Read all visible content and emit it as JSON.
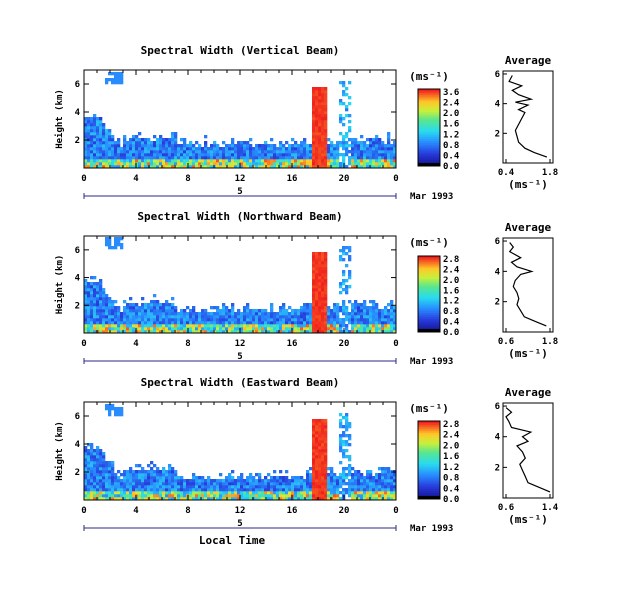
{
  "chart_data": [
    {
      "type": "heatmap",
      "title": "Spectral Width (Vertical Beam)",
      "ylabel": "Height (km)",
      "xlabel": "",
      "x_ticks": [
        "0",
        "4",
        "8",
        "12",
        "16",
        "20",
        "0"
      ],
      "y_ticks": [
        "6",
        "4",
        "2"
      ],
      "day_label": "5",
      "date_label": "Mar 1993",
      "colorbar": {
        "unit": "(ms⁻¹)",
        "labels": [
          "3.6",
          "2.4",
          "2.0",
          "1.6",
          "1.2",
          "0.8",
          "0.4",
          "0.0"
        ]
      },
      "average": {
        "title": "Average",
        "xlabel": "(ms⁻¹)",
        "x_ticks": [
          "0.4",
          "1.8"
        ],
        "y_ticks": [
          "6",
          "4",
          "2"
        ],
        "profile": [
          [
            1.7,
            0.4
          ],
          [
            1.3,
            0.7
          ],
          [
            1.0,
            1.0
          ],
          [
            0.8,
            1.4
          ],
          [
            0.75,
            1.8
          ],
          [
            0.7,
            2.2
          ],
          [
            0.8,
            2.6
          ],
          [
            0.9,
            3.0
          ],
          [
            1.0,
            3.4
          ],
          [
            0.8,
            3.6
          ],
          [
            1.1,
            3.9
          ],
          [
            0.7,
            4.1
          ],
          [
            1.2,
            4.3
          ],
          [
            0.8,
            4.6
          ],
          [
            0.6,
            4.9
          ],
          [
            0.9,
            5.2
          ],
          [
            0.5,
            5.5
          ],
          [
            0.6,
            5.9
          ]
        ]
      }
    },
    {
      "type": "heatmap",
      "title": "Spectral Width (Northward Beam)",
      "ylabel": "Height (km)",
      "xlabel": "",
      "x_ticks": [
        "0",
        "4",
        "8",
        "12",
        "16",
        "20",
        "0"
      ],
      "y_ticks": [
        "6",
        "4",
        "2"
      ],
      "day_label": "5",
      "date_label": "Mar 1993",
      "colorbar": {
        "unit": "(ms⁻¹)",
        "labels": [
          "2.8",
          "2.4",
          "2.0",
          "1.6",
          "1.2",
          "0.8",
          "0.4",
          "0.0"
        ]
      },
      "average": {
        "title": "Average",
        "xlabel": "(ms⁻¹)",
        "x_ticks": [
          "0.6",
          "1.8"
        ],
        "y_ticks": [
          "6",
          "4",
          "2"
        ],
        "profile": [
          [
            1.7,
            0.4
          ],
          [
            1.4,
            0.7
          ],
          [
            1.1,
            1.0
          ],
          [
            1.0,
            1.4
          ],
          [
            0.9,
            1.8
          ],
          [
            0.95,
            2.2
          ],
          [
            0.9,
            2.6
          ],
          [
            0.8,
            3.0
          ],
          [
            0.85,
            3.4
          ],
          [
            1.0,
            3.8
          ],
          [
            1.3,
            4.0
          ],
          [
            0.9,
            4.3
          ],
          [
            0.75,
            4.6
          ],
          [
            1.0,
            4.9
          ],
          [
            0.7,
            5.3
          ],
          [
            0.8,
            5.6
          ],
          [
            0.7,
            5.9
          ]
        ]
      }
    },
    {
      "type": "heatmap",
      "title": "Spectral Width (Eastward Beam)",
      "ylabel": "Height (km)",
      "xlabel": "Local Time",
      "x_ticks": [
        "0",
        "4",
        "8",
        "12",
        "16",
        "20",
        "0"
      ],
      "y_ticks": [
        "6",
        "4",
        "2"
      ],
      "day_label": "5",
      "date_label": "Mar 1993",
      "colorbar": {
        "unit": "(ms⁻¹)",
        "labels": [
          "2.8",
          "2.4",
          "2.0",
          "1.6",
          "1.2",
          "0.8",
          "0.4",
          "0.0"
        ]
      },
      "average": {
        "title": "Average",
        "xlabel": "(ms⁻¹)",
        "x_ticks": [
          "0.6",
          "1.4"
        ],
        "y_ticks": [
          "6",
          "4",
          "2"
        ],
        "profile": [
          [
            1.4,
            0.4
          ],
          [
            1.2,
            0.7
          ],
          [
            1.0,
            1.0
          ],
          [
            0.95,
            1.4
          ],
          [
            0.9,
            1.8
          ],
          [
            0.85,
            2.2
          ],
          [
            0.95,
            2.6
          ],
          [
            0.9,
            3.0
          ],
          [
            0.8,
            3.4
          ],
          [
            1.0,
            3.7
          ],
          [
            0.9,
            4.0
          ],
          [
            1.05,
            4.3
          ],
          [
            0.7,
            4.6
          ],
          [
            0.65,
            5.0
          ],
          [
            0.6,
            5.3
          ],
          [
            0.7,
            5.6
          ],
          [
            0.6,
            5.9
          ]
        ]
      }
    }
  ]
}
